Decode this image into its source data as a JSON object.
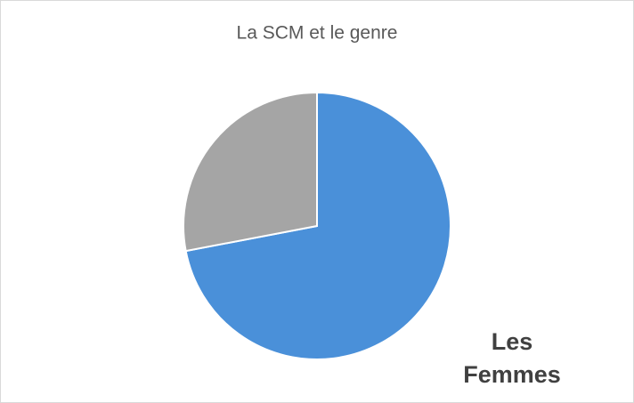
{
  "chart_data": {
    "type": "pie",
    "title": "La SCM et le genre",
    "categories": [
      "Les Femmes",
      null
    ],
    "values": [
      72,
      28
    ],
    "colors": [
      "#4a90d9",
      "#a5a5a5"
    ]
  }
}
